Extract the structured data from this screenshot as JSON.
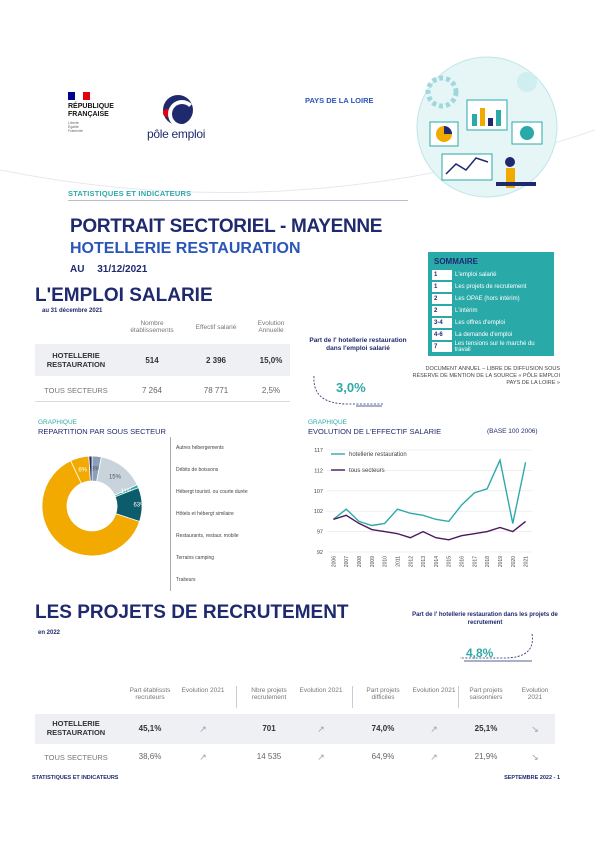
{
  "header": {
    "republique_lines": [
      "RÉPUBLIQUE",
      "FRANÇAISE"
    ],
    "motto": [
      "Liberté",
      "Égalité",
      "Fraternité"
    ],
    "pole_emploi_text": "pôle emploi",
    "region": "PAYS DE LA LOIRE",
    "section_label": "STATISTIQUES ET INDICATEURS"
  },
  "title": {
    "line1": "PORTRAIT SECTORIEL - MAYENNE",
    "line2": "HOTELLERIE RESTAURATION",
    "au": "AU",
    "date": "31/12/2021"
  },
  "sommaire": {
    "title": "SOMMAIRE",
    "items": [
      {
        "num": "1",
        "label": "L'emploi salarié"
      },
      {
        "num": "1",
        "label": "Les projets de recrutement"
      },
      {
        "num": "2",
        "label": "Les OPAE (hors intérim)"
      },
      {
        "num": "2",
        "label": "L'intérim"
      },
      {
        "num": "3-4",
        "label": "Les offres d'emploi"
      },
      {
        "num": "4-6",
        "label": "La demande d'emploi"
      },
      {
        "num": "7",
        "label": "Les tensions sur le marché du travail"
      }
    ]
  },
  "emploi": {
    "title": "L'EMPLOI SALARIE",
    "subtitle": "au 31 décembre 2021",
    "columns": [
      "Nombre établissements",
      "Effectif salarié",
      "Evolution Annuelle"
    ],
    "rows": [
      {
        "label": "HOTELLERIE RESTAURATION",
        "values": [
          "514",
          "2 396",
          "15,0%"
        ]
      },
      {
        "label": "TOUS SECTEURS",
        "values": [
          "7 264",
          "78 771",
          "2,5%"
        ]
      }
    ],
    "part_text": "Part de l' hotellerie restauration dans l'emploi salarié",
    "part_value": "3,0%",
    "source": "DOCUMENT ANNUEL – LIBRE DE DIFFUSION SOUS RÉSERVE DE MENTION DE LA SOURCE « PÔLE EMPLOI PAYS DE LA LOIRE »"
  },
  "pie_section": {
    "tag": "GRAPHIQUE",
    "title": "REPARTITION PAR SOUS SECTEUR"
  },
  "line_section": {
    "tag": "GRAPHIQUE",
    "title": "EVOLUTION DE L'EFFECTIF SALARIE",
    "base": "(BASE 100 2006)"
  },
  "chart_data": [
    {
      "type": "pie",
      "donut": true,
      "categories": [
        "Autres hébergements",
        "Débits de boissons",
        "Hébergt touristi. ou courte durée",
        "Hôtels et hébergt similaire",
        "Restaurants, restaur. mobile",
        "Terrains camping",
        "Traiteurs"
      ],
      "values": [
        1,
        3,
        15,
        1,
        11,
        63,
        6
      ],
      "slice_order": [
        "Débits de boissons",
        "Hébergt touristi. ou courte durée",
        "Hôtels et hébergt similaire",
        "Restaurants, restaur. mobile",
        "Terrains camping",
        "Traiteurs",
        "Autres hébergements"
      ],
      "labels_shown": [
        "3%",
        "15%",
        "11%",
        "63%",
        "6%"
      ],
      "colors": {
        "Autres hébergements": "#1f2a6e",
        "Débits de boissons": "#8aa0b8",
        "Hébergt touristi. ou courte durée": "#c9d3dc",
        "Hôtels et hébergt similaire": "#2aa9a9",
        "Restaurants, restaur. mobile": "#0d5c6b",
        "Terrains camping": "#f2a900",
        "Traiteurs": "#f2a900"
      }
    },
    {
      "type": "line",
      "x": [
        "2006",
        "2007",
        "2008",
        "2009",
        "2010",
        "2011",
        "2012",
        "2013",
        "2014",
        "2015",
        "2016",
        "2017",
        "2018",
        "2019",
        "2020",
        "2021"
      ],
      "series": [
        {
          "name": "hotellerie restauration",
          "color": "#2ea9a9",
          "values": [
            100,
            102.5,
            99.5,
            98.5,
            99,
            102.5,
            101.5,
            101,
            100,
            99.5,
            103.5,
            106.5,
            107.5,
            114.5,
            99,
            114
          ]
        },
        {
          "name": "tous secteurs",
          "color": "#4a1a5c",
          "values": [
            100,
            101,
            99,
            97.5,
            97,
            96.5,
            95.5,
            97,
            95.5,
            95,
            96,
            96.5,
            97,
            98,
            97,
            99.5
          ]
        }
      ],
      "ylim": [
        92,
        117
      ],
      "yticks": [
        "92",
        "97",
        "102",
        "107",
        "112",
        "117"
      ],
      "grid": true,
      "legend": "top-left"
    }
  ],
  "projets": {
    "title": "LES PROJETS DE RECRUTEMENT",
    "subtitle": "en 2022",
    "part_text": "Part de l' hotellerie restauration dans les projets de recrutement",
    "part_value": "4,8%",
    "columns": [
      "Part établissts recruteurs",
      "Evolution 2021",
      "Nbre projets recrutement",
      "Evolution 2021",
      "Part projets difficiles",
      "Evolution 2021",
      "Part projets saisonniers",
      "Evolution 2021"
    ],
    "rows": [
      {
        "label": "HOTELLERIE RESTAURATION",
        "values": [
          "45,1%",
          "↗",
          "701",
          "↗",
          "74,0%",
          "↗",
          "25,1%",
          "↘"
        ]
      },
      {
        "label": "TOUS SECTEURS",
        "values": [
          "38,6%",
          "↗",
          "14 535",
          "↗",
          "64,9%",
          "↗",
          "21,9%",
          "↘"
        ]
      }
    ]
  },
  "footer": {
    "left": "STATISTIQUES ET INDICATEURS",
    "right": "SEPTEMBRE 2022 - 1"
  }
}
